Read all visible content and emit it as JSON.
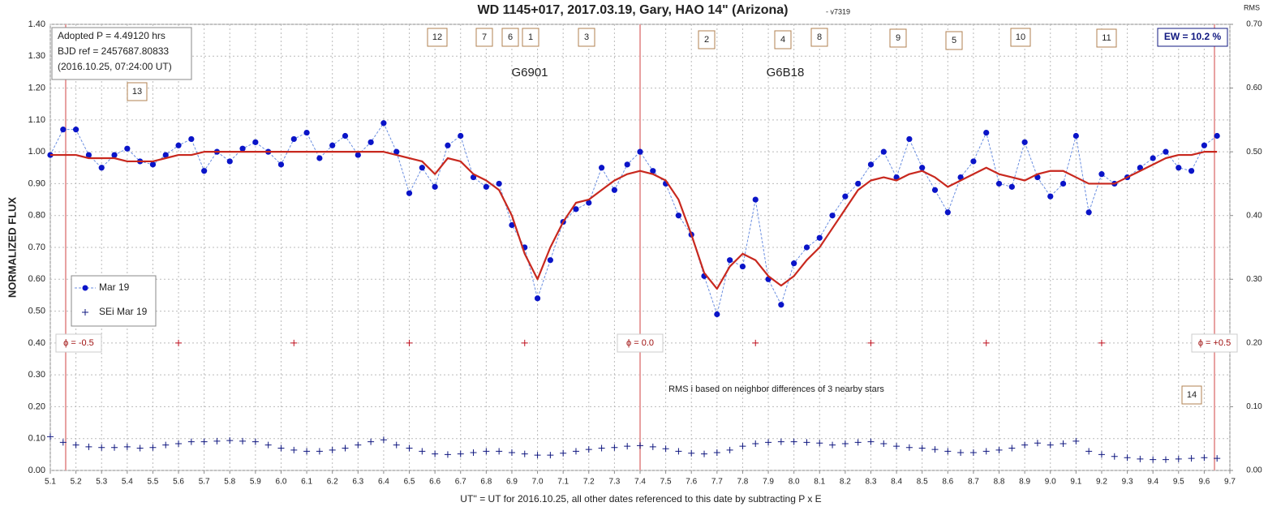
{
  "chart_data": {
    "type": "scatter",
    "title": "WD 1145+017, 2017.03.19, Gary, HAO 14\" (Arizona)",
    "subtitle": "- v7319",
    "ylabel": "NORMALIZED FLUX",
    "y2label": "RMS",
    "xlabel": "UT'' = UT for 2016.10.25, all other dates referenced to this date by subtracting P x E",
    "xlim": [
      5.1,
      9.7
    ],
    "ylim": [
      0,
      1.4
    ],
    "y2lim": [
      0,
      0.7
    ],
    "grid": true,
    "xticks": [
      5.1,
      5.2,
      5.3,
      5.4,
      5.5,
      5.6,
      5.7,
      5.8,
      5.9,
      {
        "value": 6,
        "label": "6.0"
      },
      6.1,
      6.2,
      6.3,
      6.4,
      6.5,
      6.6,
      6.7,
      6.8,
      6.9,
      {
        "value": 7,
        "label": "7.0"
      },
      7.1,
      7.2,
      7.3,
      7.4,
      7.5,
      7.6,
      7.7,
      7.8,
      7.9,
      {
        "value": 8,
        "label": "8.0"
      },
      8.1,
      8.2,
      8.3,
      8.4,
      8.5,
      8.6,
      8.7,
      8.8,
      8.9,
      {
        "value": 9,
        "label": "9.0"
      },
      9.1,
      9.2,
      9.3,
      9.4,
      9.5,
      9.6,
      9.7
    ],
    "yticks": [
      {
        "value": 0,
        "label": "0.00"
      },
      {
        "value": 0.1,
        "label": "0.10"
      },
      {
        "value": 0.2,
        "label": "0.20"
      },
      {
        "value": 0.3,
        "label": "0.30"
      },
      {
        "value": 0.4,
        "label": "0.40"
      },
      {
        "value": 0.5,
        "label": "0.50"
      },
      {
        "value": 0.6,
        "label": "0.60"
      },
      {
        "value": 0.7,
        "label": "0.70"
      },
      {
        "value": 0.8,
        "label": "0.80"
      },
      {
        "value": 0.9,
        "label": "0.90"
      },
      {
        "value": 1,
        "label": "1.00"
      },
      {
        "value": 1.1,
        "label": "1.10"
      },
      {
        "value": 1.2,
        "label": "1.20"
      },
      {
        "value": 1.3,
        "label": "1.30"
      },
      {
        "value": 1.4,
        "label": "1.40"
      }
    ],
    "y2ticks": [
      {
        "value": 0,
        "label": "0.00"
      },
      {
        "value": 0.1,
        "label": "0.10"
      },
      {
        "value": 0.2,
        "label": "0.20"
      },
      {
        "value": 0.3,
        "label": "0.30"
      },
      {
        "value": 0.4,
        "label": "0.40"
      },
      {
        "value": 0.5,
        "label": "0.50"
      },
      {
        "value": 0.6,
        "label": "0.60"
      },
      {
        "value": 0.7,
        "label": "0.70"
      }
    ],
    "x": [
      5.1,
      5.15,
      5.2,
      5.25,
      5.3,
      5.35,
      5.4,
      5.45,
      5.5,
      5.55,
      5.6,
      5.65,
      5.7,
      5.75,
      5.8,
      5.85,
      5.9,
      5.95,
      6,
      6.05,
      6.1,
      6.15,
      6.2,
      6.25,
      6.3,
      6.35,
      6.4,
      6.45,
      6.5,
      6.55,
      6.6,
      6.65,
      6.7,
      6.75,
      6.8,
      6.85,
      6.9,
      6.95,
      7,
      7.05,
      7.1,
      7.15,
      7.2,
      7.25,
      7.3,
      7.35,
      7.4,
      7.45,
      7.5,
      7.55,
      7.6,
      7.65,
      7.7,
      7.75,
      7.8,
      7.85,
      7.9,
      7.95,
      8,
      8.05,
      8.1,
      8.15,
      8.2,
      8.25,
      8.3,
      8.35,
      8.4,
      8.45,
      8.5,
      8.55,
      8.6,
      8.65,
      8.7,
      8.75,
      8.8,
      8.85,
      8.9,
      8.95,
      9,
      9.05,
      9.1,
      9.15,
      9.2,
      9.25,
      9.3,
      9.35,
      9.4,
      9.45,
      9.5,
      9.55,
      9.6,
      9.65
    ],
    "series": [
      {
        "name": "Mar 19",
        "color": "#0a14c8",
        "values": [
          0.99,
          1.07,
          1.07,
          0.99,
          0.95,
          0.99,
          1.01,
          0.97,
          0.96,
          0.99,
          1.02,
          1.04,
          0.94,
          1.0,
          0.97,
          1.01,
          1.03,
          1.0,
          0.96,
          1.04,
          1.06,
          0.98,
          1.02,
          1.05,
          0.99,
          1.03,
          1.09,
          1.0,
          0.87,
          0.95,
          0.89,
          1.02,
          1.05,
          0.92,
          0.89,
          0.9,
          0.77,
          0.7,
          0.54,
          0.66,
          0.78,
          0.82,
          0.84,
          0.95,
          0.88,
          0.96,
          1.0,
          0.94,
          0.9,
          0.8,
          0.74,
          0.61,
          0.49,
          0.66,
          0.64,
          0.85,
          0.6,
          0.52,
          0.65,
          0.7,
          0.73,
          0.8,
          0.86,
          0.9,
          0.96,
          1.0,
          0.92,
          1.04,
          0.95,
          0.88,
          0.81,
          0.92,
          0.97,
          1.06,
          0.9,
          0.89,
          1.03,
          0.92,
          0.86,
          0.9,
          1.05,
          0.81,
          0.93,
          0.9,
          0.92,
          0.95,
          0.98,
          1.0,
          0.95,
          0.94,
          1.02,
          1.05
        ]
      },
      {
        "color": "#c8281e",
        "values": [
          0.99,
          0.99,
          0.99,
          0.98,
          0.98,
          0.98,
          0.97,
          0.97,
          0.97,
          0.98,
          0.99,
          0.99,
          1.0,
          1.0,
          1.0,
          1.0,
          1.0,
          1.0,
          1.0,
          1.0,
          1.0,
          1.0,
          1.0,
          1.0,
          1.0,
          1.0,
          1.0,
          0.99,
          0.98,
          0.97,
          0.93,
          0.98,
          0.97,
          0.93,
          0.91,
          0.88,
          0.8,
          0.68,
          0.6,
          0.7,
          0.78,
          0.84,
          0.85,
          0.88,
          0.91,
          0.93,
          0.94,
          0.93,
          0.91,
          0.85,
          0.74,
          0.62,
          0.57,
          0.64,
          0.68,
          0.66,
          0.61,
          0.58,
          0.61,
          0.66,
          0.7,
          0.76,
          0.82,
          0.88,
          0.91,
          0.92,
          0.91,
          0.93,
          0.94,
          0.92,
          0.89,
          0.91,
          0.93,
          0.95,
          0.93,
          0.92,
          0.91,
          0.93,
          0.94,
          0.94,
          0.92,
          0.9,
          0.9,
          0.9,
          0.92,
          0.94,
          0.96,
          0.98,
          0.99,
          0.99,
          1.0,
          1.0
        ]
      },
      {
        "name": "SEi Mar 19",
        "color": "#101880",
        "axis": "y2",
        "values": [
          0.053,
          0.044,
          0.04,
          0.037,
          0.036,
          0.036,
          0.037,
          0.035,
          0.036,
          0.04,
          0.042,
          0.045,
          0.045,
          0.046,
          0.047,
          0.046,
          0.045,
          0.04,
          0.035,
          0.032,
          0.03,
          0.03,
          0.032,
          0.035,
          0.04,
          0.045,
          0.048,
          0.04,
          0.035,
          0.03,
          0.026,
          0.025,
          0.026,
          0.028,
          0.03,
          0.03,
          0.028,
          0.026,
          0.024,
          0.024,
          0.027,
          0.03,
          0.033,
          0.035,
          0.036,
          0.038,
          0.039,
          0.037,
          0.034,
          0.03,
          0.027,
          0.026,
          0.028,
          0.032,
          0.038,
          0.042,
          0.044,
          0.045,
          0.045,
          0.044,
          0.043,
          0.04,
          0.042,
          0.044,
          0.045,
          0.042,
          0.038,
          0.036,
          0.035,
          0.033,
          0.03,
          0.028,
          0.028,
          0.03,
          0.032,
          0.035,
          0.04,
          0.043,
          0.04,
          0.042,
          0.046,
          0.03,
          0.025,
          0.022,
          0.02,
          0.018,
          0.017,
          0.017,
          0.018,
          0.019,
          0.02,
          0.019
        ]
      }
    ],
    "phase_markers": {
      "color": "#c0101e",
      "x": [
        5.6,
        6.05,
        6.5,
        6.95,
        7.85,
        8.3,
        8.75,
        9.2
      ],
      "values": [
        0.4,
        0.4,
        0.4,
        0.4,
        0.4,
        0.4,
        0.4,
        0.4
      ]
    },
    "phase_lines": [
      {
        "x": 5.16,
        "label": "ϕ = -0.5"
      },
      {
        "x": 7.4,
        "label": "ϕ = 0.0"
      },
      {
        "x": 9.64,
        "label": "ϕ = +0.5"
      }
    ],
    "info": [
      "Adopted P = 4.49120  hrs",
      "BJD ref = 2457687.80833",
      "(2016.10.25,  07:24:00  UT)"
    ],
    "ew": "EW = 10.2 %",
    "names": [
      "G6901",
      "G6B18"
    ],
    "note": "RMS i based on neighbor differences of 3 nearby stars",
    "boxes": [
      "12",
      "7",
      "6",
      "1",
      "3",
      "2",
      "4",
      "8",
      "9",
      "5",
      "10",
      "11",
      "13",
      "14"
    ]
  }
}
